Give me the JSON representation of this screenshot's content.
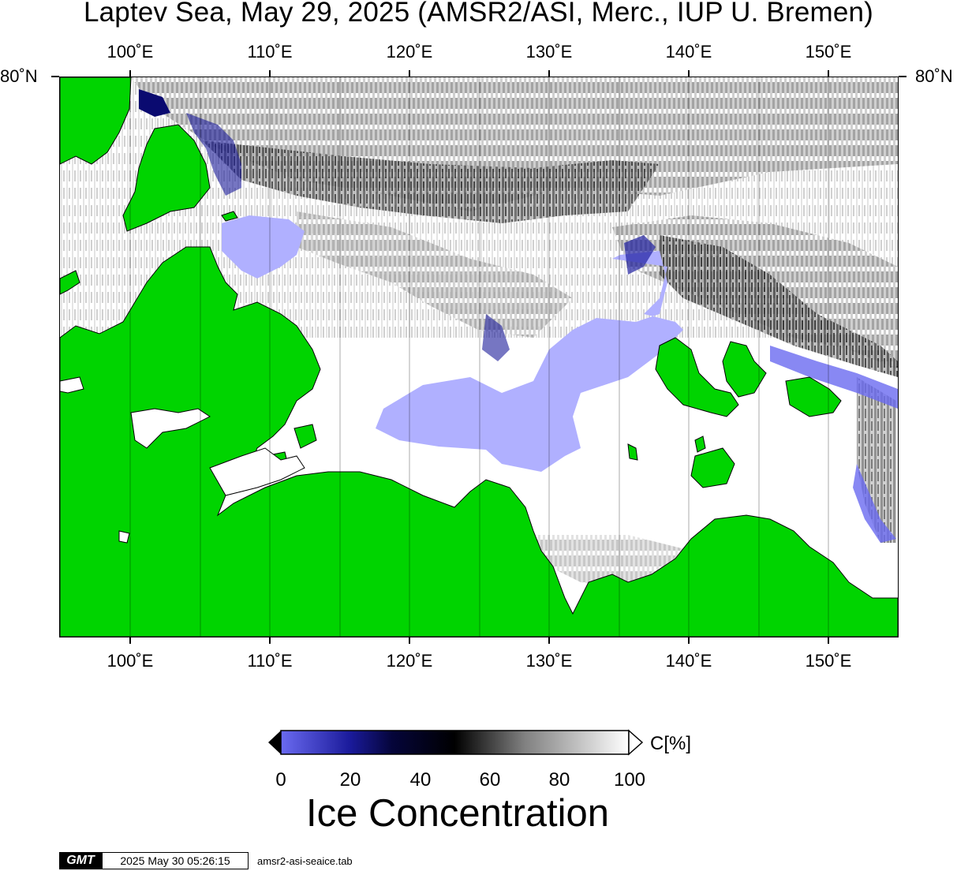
{
  "title": "Laptev Sea, May 29, 2025 (AMSR2/ASI, Merc., IUP U. Bremen)",
  "lon_labels": [
    "100˚E",
    "110˚E",
    "120˚E",
    "130˚E",
    "140˚E",
    "150˚E"
  ],
  "lon_values": [
    100,
    110,
    120,
    130,
    140,
    150
  ],
  "lat_label_left": "80˚N",
  "lat_label_right": "80˚N",
  "map": {
    "lon_range": [
      95,
      155
    ],
    "projection": "Mercator",
    "land_color": "#00d400",
    "coast_color": "#000000",
    "grid_color": "#000000"
  },
  "colorbar": {
    "label": "C[%]",
    "ticks": [
      "0",
      "20",
      "40",
      "60",
      "80",
      "100"
    ],
    "tick_values": [
      0,
      20,
      40,
      60,
      80,
      100
    ],
    "range": [
      0,
      100
    ],
    "colors": [
      "#6a6af0",
      "#1a1a9a",
      "#000000",
      "#808080",
      "#ffffff"
    ]
  },
  "colorbar_title": "Ice Concentration",
  "footer": {
    "logo": "GMT",
    "timestamp": "2025 May 30 05:26:15",
    "source_file": "amsr2-asi-seaice.tab"
  }
}
